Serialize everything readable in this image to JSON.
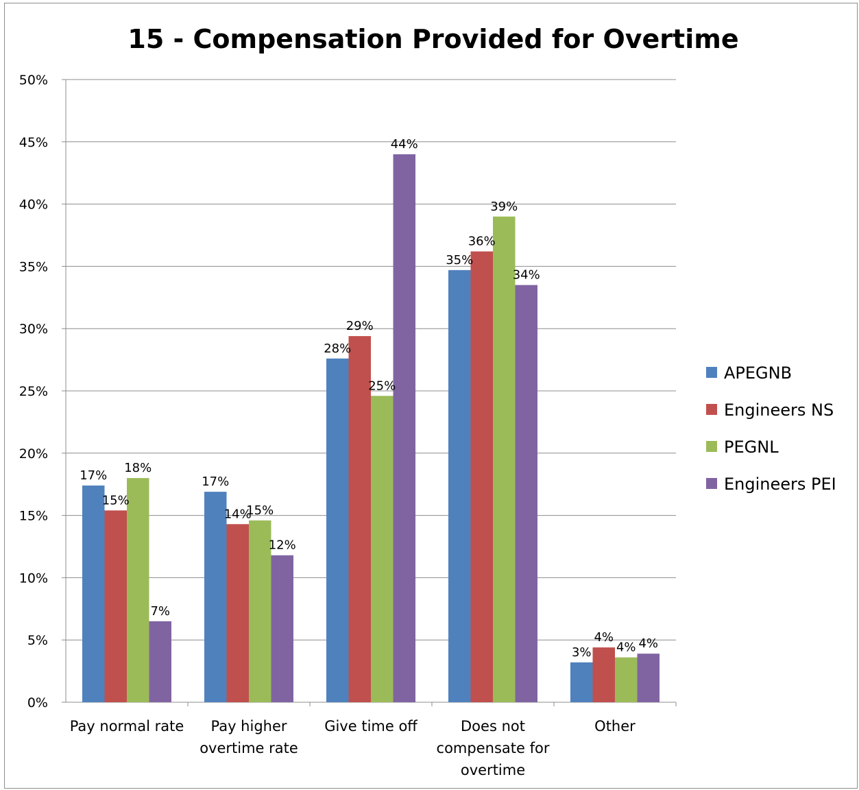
{
  "chart_data": {
    "type": "bar",
    "title": "15 - Compensation Provided for Overtime",
    "xlabel": "",
    "ylabel": "",
    "categories": [
      [
        "Pay normal rate"
      ],
      [
        "Pay higher",
        "overtime rate"
      ],
      [
        "Give time off"
      ],
      [
        "Does not",
        "compensate for",
        "overtime"
      ],
      [
        "Other"
      ]
    ],
    "series": [
      {
        "name": "APEGNB",
        "color": "#4F81BD",
        "values": [
          17.4,
          16.9,
          27.6,
          34.7,
          3.2
        ],
        "labels": [
          "17%",
          "17%",
          "28%",
          "35%",
          "3%"
        ]
      },
      {
        "name": "Engineers NS",
        "color": "#C0504D",
        "values": [
          15.4,
          14.3,
          29.4,
          36.2,
          4.4
        ],
        "labels": [
          "15%",
          "14%",
          "29%",
          "36%",
          "4%"
        ]
      },
      {
        "name": "PEGNL",
        "color": "#9BBB59",
        "values": [
          18.0,
          14.6,
          24.6,
          39.0,
          3.6
        ],
        "labels": [
          "18%",
          "15%",
          "25%",
          "39%",
          "4%"
        ]
      },
      {
        "name": "Engineers PEI",
        "color": "#8064A2",
        "values": [
          6.5,
          11.8,
          44.0,
          33.5,
          3.9
        ],
        "labels": [
          "7%",
          "12%",
          "44%",
          "34%",
          "4%"
        ]
      }
    ],
    "ylim": [
      0,
      50
    ],
    "ytick_labels": [
      "0%",
      "5%",
      "10%",
      "15%",
      "20%",
      "25%",
      "30%",
      "35%",
      "40%",
      "45%",
      "50%"
    ],
    "grid": true,
    "legend_position": "right"
  }
}
